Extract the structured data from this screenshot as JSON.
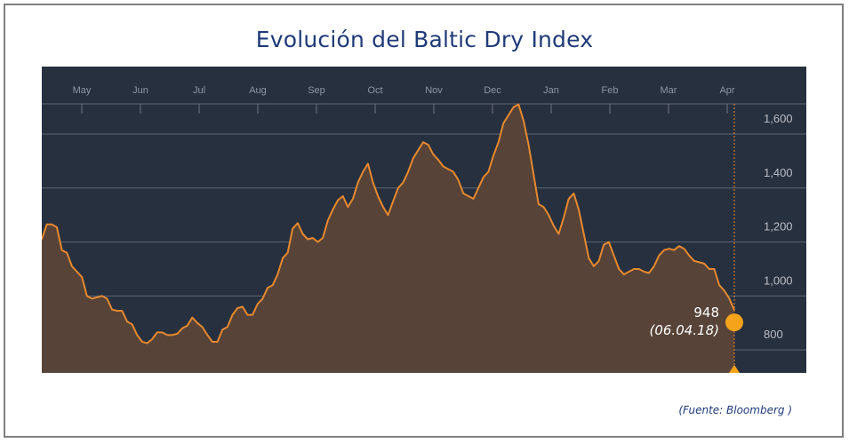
{
  "title": "Evolución del Baltic Dry Index",
  "source": "(Fuente: Bloomberg )",
  "chart_data": {
    "type": "area",
    "title": "Evolución del Baltic Dry Index",
    "xlabel": "",
    "ylabel": "",
    "months": [
      "May",
      "Jun",
      "Jul",
      "Aug",
      "Sep",
      "Oct",
      "Nov",
      "Dec",
      "Jan",
      "Feb",
      "Mar",
      "Apr"
    ],
    "yticks": [
      "1,600",
      "1,400",
      "1,200",
      "1,000",
      "800"
    ],
    "ytick_values": [
      1600,
      1400,
      1200,
      1000,
      800
    ],
    "ylim": [
      715,
      1850
    ],
    "series": [
      {
        "values": [
          1210,
          1265,
          1265,
          1255,
          1170,
          1160,
          1110,
          1090,
          1070,
          1000,
          990,
          995,
          1000,
          990,
          950,
          945,
          945,
          905,
          895,
          855,
          830,
          825,
          840,
          865,
          865,
          855,
          855,
          860,
          880,
          890,
          920,
          900,
          885,
          855,
          830,
          830,
          875,
          885,
          930,
          955,
          960,
          930,
          930,
          970,
          990,
          1030,
          1040,
          1080,
          1140,
          1160,
          1250,
          1270,
          1230,
          1210,
          1215,
          1200,
          1215,
          1280,
          1320,
          1355,
          1370,
          1330,
          1360,
          1420,
          1460,
          1490,
          1420,
          1370,
          1330,
          1300,
          1350,
          1400,
          1420,
          1460,
          1510,
          1540,
          1570,
          1560,
          1525,
          1505,
          1480,
          1470,
          1460,
          1430,
          1380,
          1370,
          1360,
          1400,
          1440,
          1460,
          1520,
          1570,
          1640,
          1670,
          1700,
          1710,
          1650,
          1560,
          1450,
          1340,
          1330,
          1300,
          1260,
          1230,
          1290,
          1360,
          1380,
          1320,
          1230,
          1140,
          1110,
          1130,
          1190,
          1200,
          1150,
          1100,
          1080,
          1090,
          1100,
          1100,
          1090,
          1085,
          1110,
          1150,
          1170,
          1175,
          1170,
          1185,
          1175,
          1150,
          1130,
          1125,
          1120,
          1100,
          1100,
          1040,
          1020,
          990,
          948
        ]
      }
    ],
    "annotation": {
      "value": "948",
      "date": "(06.04.18)"
    },
    "colors": {
      "background": "#27303f",
      "line": "#e6892e",
      "fill": "#574338",
      "grid": "#5f6570",
      "marker": "#f5a31a"
    }
  }
}
